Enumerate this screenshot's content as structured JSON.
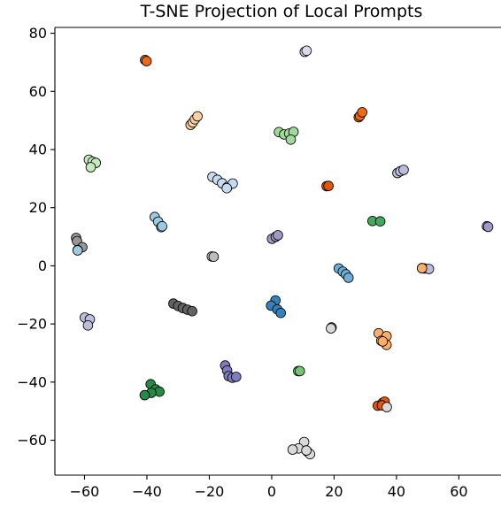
{
  "chart_data": {
    "type": "scatter",
    "title": "T-SNE Projection of Local Prompts",
    "xlabel": "",
    "ylabel": "",
    "xlim": [
      -69.5,
      73.5
    ],
    "ylim": [
      -72,
      82
    ],
    "xticks": [
      -60,
      -40,
      -20,
      0,
      20,
      40,
      60
    ],
    "yticks": [
      -60,
      -40,
      -20,
      0,
      20,
      40,
      60,
      80
    ],
    "xtick_labels": [
      "−60",
      "−40",
      "−20",
      "0",
      "20",
      "40",
      "60"
    ],
    "ytick_labels": [
      "−60",
      "−40",
      "−20",
      "0",
      "20",
      "40",
      "60",
      "80"
    ],
    "grid": false,
    "legend": "none",
    "marker_edge_color": "#000000",
    "series": [
      {
        "color": "#fdd0a2",
        "points": [
          [
            -26,
            48.5
          ],
          [
            -25.3,
            49.3
          ],
          [
            -24.6,
            50.4
          ],
          [
            -23.8,
            51.4
          ]
        ]
      },
      {
        "color": "#f16913",
        "points": [
          [
            -40.6,
            70.8
          ],
          [
            -40.1,
            70.4
          ]
        ]
      },
      {
        "color": "#dadaeb",
        "points": [
          [
            10.6,
            73.6
          ],
          [
            11.2,
            74
          ]
        ]
      },
      {
        "color": "#c7e9c0",
        "points": [
          [
            -58.6,
            36.5
          ],
          [
            -57.4,
            35.8
          ],
          [
            -56.4,
            35.4
          ],
          [
            -58,
            33.9
          ]
        ]
      },
      {
        "color": "#a1d99b",
        "points": [
          [
            2.3,
            46
          ],
          [
            4,
            45.2
          ],
          [
            5.6,
            45.5
          ],
          [
            7,
            46.1
          ],
          [
            6.1,
            43.4
          ]
        ]
      },
      {
        "color": "#f16913",
        "points": [
          [
            27.9,
            51.1
          ],
          [
            28.3,
            51.6
          ],
          [
            29,
            52.8
          ]
        ]
      },
      {
        "color": "#bcbddc",
        "points": [
          [
            40.3,
            31.9
          ],
          [
            41.2,
            32.5
          ],
          [
            42.3,
            33
          ]
        ]
      },
      {
        "color": "#c6dbef",
        "points": [
          [
            -19,
            30.6
          ],
          [
            -17.4,
            29.6
          ],
          [
            -15.9,
            28.4
          ],
          [
            -14.2,
            27.1
          ],
          [
            -12.5,
            28.3
          ],
          [
            -14.4,
            26.7
          ]
        ]
      },
      {
        "color": "#e6550d",
        "points": [
          [
            17.6,
            27.4
          ],
          [
            18.2,
            27.5
          ]
        ]
      },
      {
        "color": "#41ab5d",
        "points": [
          [
            32.3,
            15.4
          ],
          [
            34.8,
            15.3
          ]
        ]
      },
      {
        "color": "#9ecae1",
        "points": [
          [
            -37.5,
            16.8
          ],
          [
            -36.4,
            15.2
          ],
          [
            -35.4,
            13.3
          ],
          [
            -35.1,
            13.6
          ]
        ]
      },
      {
        "color": "#969696",
        "points": [
          [
            -62.7,
            9.6
          ],
          [
            -62.4,
            8.5
          ],
          [
            -60.7,
            6.4
          ],
          [
            -62.2,
            5.4
          ]
        ]
      },
      {
        "color": "#9ecae1",
        "points": [
          [
            -62.2,
            5.3
          ]
        ]
      },
      {
        "color": "#bdbdbd",
        "points": [
          [
            -19.2,
            3.2
          ],
          [
            -18.6,
            3.1
          ]
        ]
      },
      {
        "color": "#9e9ac8",
        "points": [
          [
            0.1,
            9.3
          ],
          [
            1.3,
            10
          ],
          [
            2,
            10.5
          ]
        ]
      },
      {
        "color": "#9e9ac8",
        "points": [
          [
            69,
            13.6
          ],
          [
            69.4,
            13.4
          ]
        ]
      },
      {
        "color": "#6baed6",
        "points": [
          [
            21.5,
            -0.9
          ],
          [
            22.8,
            -2
          ],
          [
            23.8,
            -2.9
          ],
          [
            24.6,
            -4.1
          ]
        ]
      },
      {
        "color": "#bdbdbd",
        "points": [
          [
            48.2,
            -0.8
          ],
          [
            49,
            -0.9
          ]
        ]
      },
      {
        "color": "#bcbddc",
        "points": [
          [
            50.4,
            -1.1
          ]
        ]
      },
      {
        "color": "#fdae6b",
        "points": [
          [
            48.2,
            -0.8
          ]
        ]
      },
      {
        "color": "#636363",
        "points": [
          [
            -31.5,
            -13
          ],
          [
            -30,
            -13.8
          ],
          [
            -28.5,
            -14.5
          ],
          [
            -27,
            -15.1
          ],
          [
            -25.5,
            -15.6
          ]
        ]
      },
      {
        "color": "#3182bd",
        "points": [
          [
            1.2,
            -11.9
          ],
          [
            -0.2,
            -13.7
          ],
          [
            1.8,
            -15
          ],
          [
            2.9,
            -16.2
          ]
        ]
      },
      {
        "color": "#bcbddc",
        "points": [
          [
            -59.9,
            -17.8
          ],
          [
            -58.3,
            -18.4
          ],
          [
            -58.9,
            -20.5
          ]
        ]
      },
      {
        "color": "#d9d9d9",
        "points": [
          [
            19.2,
            -21.2
          ],
          [
            19,
            -21.5
          ]
        ]
      },
      {
        "color": "#fdae6b",
        "points": [
          [
            34.3,
            -23.2
          ],
          [
            36.8,
            -24.2
          ],
          [
            35.1,
            -25.8
          ],
          [
            36.8,
            -27.2
          ],
          [
            35.6,
            -26
          ]
        ]
      },
      {
        "color": "#807dba",
        "points": [
          [
            -14.9,
            -34.3
          ],
          [
            -14.3,
            -36
          ],
          [
            -13.8,
            -37.9
          ],
          [
            -12.6,
            -38.5
          ],
          [
            -11.4,
            -38.2
          ]
        ]
      },
      {
        "color": "#74c476",
        "points": [
          [
            8.5,
            -36.2
          ],
          [
            9,
            -36.2
          ]
        ]
      },
      {
        "color": "#238b45",
        "points": [
          [
            -38.8,
            -40.7
          ],
          [
            -37.2,
            -42.5
          ],
          [
            -36,
            -43.3
          ],
          [
            -38.6,
            -43.7
          ],
          [
            -40.7,
            -44.5
          ]
        ]
      },
      {
        "color": "#e6550d",
        "points": [
          [
            34,
            -48.1
          ],
          [
            35.6,
            -47.1
          ],
          [
            36.2,
            -46.7
          ],
          [
            35.3,
            -48
          ]
        ]
      },
      {
        "color": "#d9d9d9",
        "points": [
          [
            36.9,
            -48.6
          ]
        ]
      },
      {
        "color": "#d9d9d9",
        "points": [
          [
            10.4,
            -60.6
          ],
          [
            8.6,
            -62.8
          ],
          [
            6.7,
            -63.2
          ],
          [
            11.5,
            -64
          ],
          [
            12.3,
            -64.8
          ],
          [
            11.1,
            -63.5
          ]
        ]
      }
    ]
  }
}
